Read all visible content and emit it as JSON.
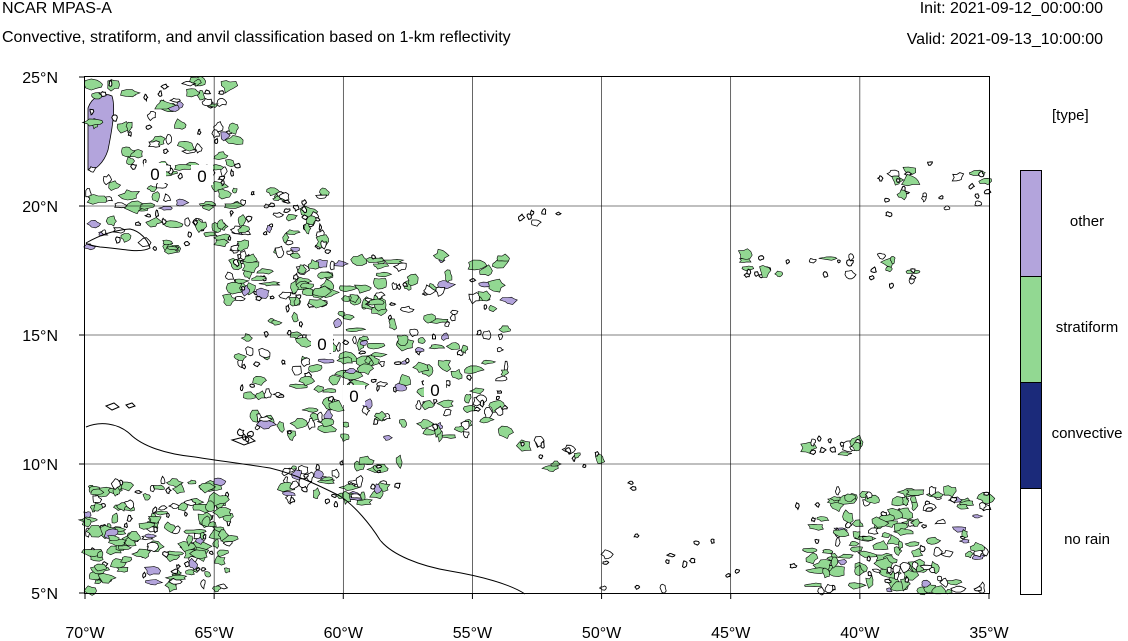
{
  "header": {
    "title": "NCAR MPAS-A",
    "subtitle": "Convective, stratiform, and anvil classification based on 1-km reflectivity",
    "init": "Init: 2021-09-12_00:00:00",
    "valid": "Valid: 2021-09-13_10:00:00"
  },
  "map": {
    "lat_range": [
      5,
      25
    ],
    "lon_range": [
      -70,
      -35
    ],
    "lat_ticks": [
      "5°N",
      "10°N",
      "15°N",
      "20°N",
      "25°N"
    ],
    "lon_ticks": [
      "70°W",
      "65°W",
      "60°W",
      "55°W",
      "50°W",
      "45°W",
      "40°W",
      "35°W"
    ],
    "contour_label": "0",
    "gridlines": true
  },
  "legend": {
    "unit": "[type]",
    "categories": [
      {
        "label": "other",
        "color": "#b3a4dc"
      },
      {
        "label": "stratiform",
        "color": "#92d892"
      },
      {
        "label": "convective",
        "color": "#1b2a7a"
      },
      {
        "label": "no rain",
        "color": "#ffffff"
      }
    ]
  },
  "colors": {
    "other": "#b3a4dc",
    "stratiform": "#92d892",
    "convective": "#1b2a7a",
    "no_rain": "#ffffff"
  }
}
